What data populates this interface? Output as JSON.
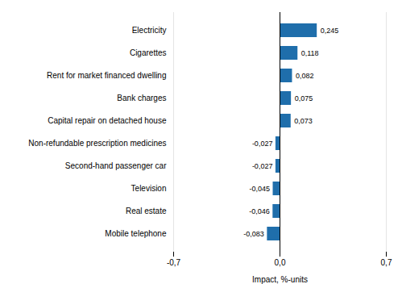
{
  "chart_data": {
    "type": "bar",
    "orientation": "horizontal",
    "categories": [
      "Mobile telephone",
      "Real estate",
      "Television",
      "Second-hand passenger car",
      "Non-refundable prescription medicines",
      "Capital repair on detached house",
      "Bank charges",
      "Rent for market financed dwelling",
      "Cigarettes",
      "Electricity"
    ],
    "values": [
      -0.083,
      -0.046,
      -0.045,
      -0.027,
      -0.027,
      0.073,
      0.075,
      0.082,
      0.118,
      0.245
    ],
    "value_labels": [
      "-0,083",
      "-0,046",
      "-0,045",
      "-0,027",
      "-0,027",
      "0,073",
      "0,075",
      "0,082",
      "0,118",
      "0,245"
    ],
    "color": "#1f6eab",
    "xlabel": "Impact, %-units",
    "xlim": [
      -0.7,
      0.7
    ],
    "xticks": [
      {
        "value": -0.7,
        "label": "-0,7"
      },
      {
        "value": 0.0,
        "label": "0,0"
      },
      {
        "value": 0.7,
        "label": "0,7"
      }
    ],
    "grid": true,
    "data_labels": true
  }
}
